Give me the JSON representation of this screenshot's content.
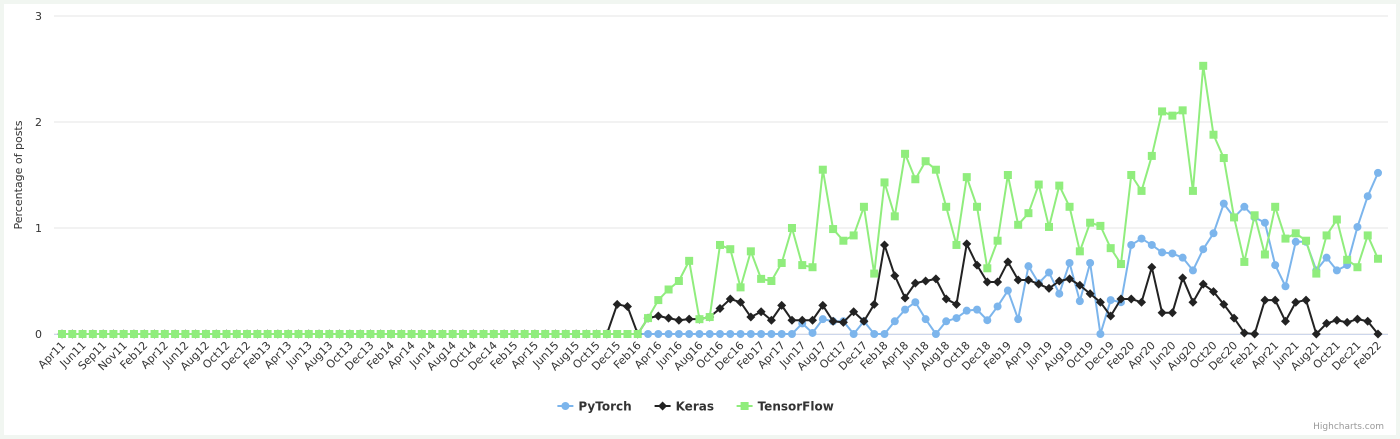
{
  "chart_data": {
    "type": "line",
    "y_axis_label": "Percentage of posts",
    "categories": [
      "Apr11",
      null,
      "Jun11",
      null,
      "Sep11",
      null,
      "Nov11",
      null,
      "Feb12",
      null,
      "Apr12",
      null,
      "Jun12",
      null,
      "Aug12",
      null,
      "Oct12",
      null,
      "Dec12",
      null,
      "Feb13",
      null,
      "Apr13",
      null,
      "Jun13",
      null,
      "Aug13",
      null,
      "Oct13",
      null,
      "Dec13",
      null,
      "Feb14",
      null,
      "Apr14",
      null,
      "Jun14",
      null,
      "Aug14",
      null,
      "Oct14",
      null,
      "Dec14",
      null,
      "Feb15",
      null,
      "Apr15",
      null,
      "Jun15",
      null,
      "Aug15",
      null,
      "Oct15",
      null,
      "Dec15",
      null,
      "Feb16",
      null,
      "Apr16",
      null,
      "Jun16",
      null,
      "Aug16",
      null,
      "Oct16",
      null,
      "Dec16",
      null,
      "Feb17",
      null,
      "Apr17",
      null,
      "Jun17",
      null,
      "Aug17",
      null,
      "Oct17",
      null,
      "Dec17",
      null,
      "Feb18",
      null,
      "Apr18",
      null,
      "Jun18",
      null,
      "Aug18",
      null,
      "Oct18",
      null,
      "Dec18",
      null,
      "Feb19",
      null,
      "Apr19",
      null,
      "Jun19",
      null,
      "Aug19",
      null,
      "Oct19",
      null,
      "Dec19",
      null,
      "Feb20",
      null,
      "Apr20",
      null,
      "Jun20",
      null,
      "Aug20",
      null,
      "Oct20",
      null,
      "Dec20",
      null,
      "Feb21",
      null,
      "Apr21",
      null,
      "Jun21",
      null,
      "Aug21",
      null,
      "Oct21",
      null,
      "Dec21",
      null,
      "Feb22"
    ],
    "series": [
      {
        "name": "PyTorch",
        "color": "#7cb5ec",
        "marker": "circle",
        "values": [
          0,
          0,
          0,
          0,
          0,
          0,
          0,
          0,
          0,
          0,
          0,
          0,
          0,
          0,
          0,
          0,
          0,
          0,
          0,
          0,
          0,
          0,
          0,
          0,
          0,
          0,
          0,
          0,
          0,
          0,
          0,
          0,
          0,
          0,
          0,
          0,
          0,
          0,
          0,
          0,
          0,
          0,
          0,
          0,
          0,
          0,
          0,
          0,
          0,
          0,
          0,
          0,
          0,
          0,
          0,
          0,
          0,
          0,
          0,
          0,
          0,
          0,
          0,
          0,
          0,
          0,
          0,
          0,
          0,
          0,
          0,
          0,
          0.1,
          0.01,
          0.14,
          0.12,
          0.12,
          0,
          0.12,
          0,
          0,
          0.12,
          0.23,
          0.3,
          0.14,
          0,
          0.12,
          0.15,
          0.22,
          0.23,
          0.13,
          0.26,
          0.41,
          0.14,
          0.64,
          0.48,
          0.58,
          0.38,
          0.67,
          0.31,
          0.67,
          0,
          0.32,
          0.3,
          0.84,
          0.9,
          0.84,
          0.77,
          0.76,
          0.72,
          0.6,
          0.8,
          0.95,
          1.23,
          1.1,
          1.2,
          1.1,
          1.05,
          0.65,
          0.45,
          0.87,
          0.87,
          0.6,
          0.72,
          0.6,
          0.65,
          1.01,
          1.3,
          1.52
        ]
      },
      {
        "name": "Keras",
        "color": "#222222",
        "marker": "diamond",
        "values": [
          0,
          0,
          0,
          0,
          0,
          0,
          0,
          0,
          0,
          0,
          0,
          0,
          0,
          0,
          0,
          0,
          0,
          0,
          0,
          0,
          0,
          0,
          0,
          0,
          0,
          0,
          0,
          0,
          0,
          0,
          0,
          0,
          0,
          0,
          0,
          0,
          0,
          0,
          0,
          0,
          0,
          0,
          0,
          0,
          0,
          0,
          0,
          0,
          0,
          0,
          0,
          0,
          0,
          0,
          0.28,
          0.26,
          0,
          0.15,
          0.17,
          0.15,
          0.13,
          0.14,
          0.14,
          0.16,
          0.24,
          0.33,
          0.3,
          0.16,
          0.21,
          0.13,
          0.27,
          0.13,
          0.13,
          0.13,
          0.27,
          0.12,
          0.11,
          0.21,
          0.12,
          0.28,
          0.84,
          0.55,
          0.34,
          0.48,
          0.5,
          0.52,
          0.33,
          0.28,
          0.85,
          0.65,
          0.49,
          0.49,
          0.68,
          0.51,
          0.51,
          0.47,
          0.43,
          0.5,
          0.52,
          0.46,
          0.38,
          0.3,
          0.17,
          0.33,
          0.33,
          0.3,
          0.63,
          0.2,
          0.2,
          0.53,
          0.3,
          0.47,
          0.4,
          0.28,
          0.15,
          0.01,
          0,
          0.32,
          0.32,
          0.12,
          0.3,
          0.32,
          0,
          0.1,
          0.13,
          0.11,
          0.14,
          0.12,
          0
        ]
      },
      {
        "name": "TensorFlow",
        "color": "#90ed7d",
        "marker": "square",
        "values": [
          0,
          0,
          0,
          0,
          0,
          0,
          0,
          0,
          0,
          0,
          0,
          0,
          0,
          0,
          0,
          0,
          0,
          0,
          0,
          0,
          0,
          0,
          0,
          0,
          0,
          0,
          0,
          0,
          0,
          0,
          0,
          0,
          0,
          0,
          0,
          0,
          0,
          0,
          0,
          0,
          0,
          0,
          0,
          0,
          0,
          0,
          0,
          0,
          0,
          0,
          0,
          0,
          0,
          0,
          0,
          0,
          0,
          0.15,
          0.32,
          0.42,
          0.5,
          0.69,
          0.14,
          0.16,
          0.84,
          0.8,
          0.44,
          0.78,
          0.52,
          0.5,
          0.67,
          1.0,
          0.65,
          0.63,
          1.55,
          0.99,
          0.88,
          0.93,
          1.2,
          0.57,
          1.43,
          1.11,
          1.7,
          1.46,
          1.63,
          1.55,
          1.2,
          0.84,
          1.48,
          1.2,
          0.62,
          0.88,
          1.5,
          1.03,
          1.14,
          1.41,
          1.01,
          1.4,
          1.2,
          0.78,
          1.05,
          1.02,
          0.81,
          0.66,
          1.5,
          1.35,
          1.68,
          2.1,
          2.06,
          2.11,
          1.35,
          2.53,
          1.88,
          1.66,
          1.1,
          0.68,
          1.12,
          0.75,
          1.2,
          0.9,
          0.95,
          0.88,
          0.57,
          0.93,
          1.08,
          0.7,
          0.63,
          0.93,
          0.71
        ]
      }
    ],
    "ylim": [
      0,
      3
    ],
    "yticks": [
      0,
      1,
      2,
      3
    ],
    "grid": true,
    "legend": "bottom",
    "credits": "Highcharts.com"
  }
}
